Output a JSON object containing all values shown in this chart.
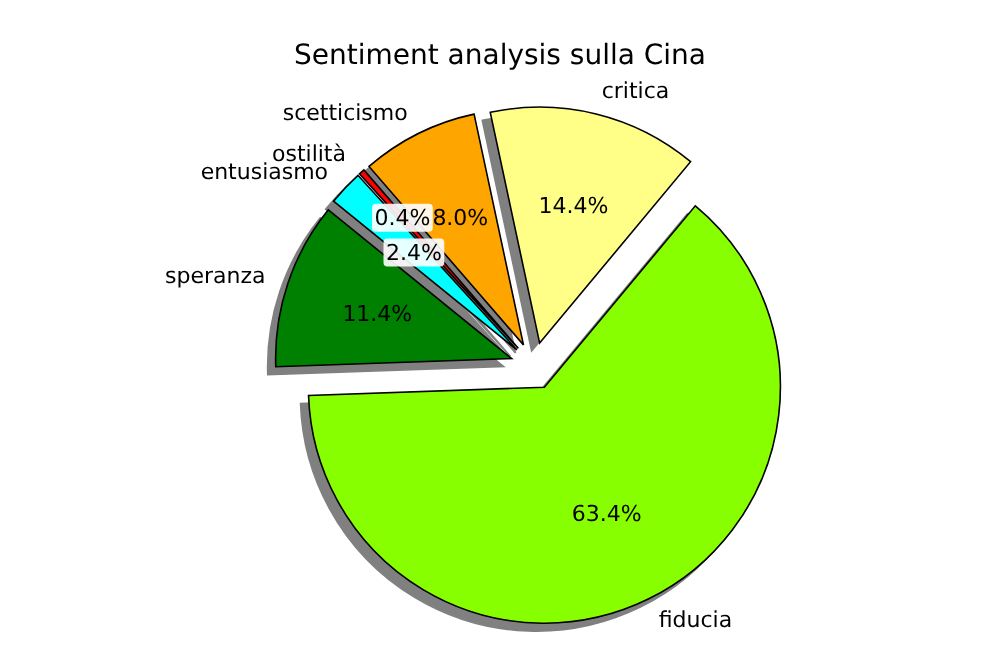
{
  "chart_data": {
    "type": "pie",
    "title": "Sentiment analysis sulla Cina",
    "categories": [
      "fiducia",
      "critica",
      "scetticismo",
      "ostilità",
      "entusiasmo",
      "speranza"
    ],
    "values": [
      63.4,
      14.4,
      8.0,
      0.4,
      2.4,
      11.4
    ],
    "colors": [
      "#88ff00",
      "#ffff88",
      "#ffa500",
      "#ff0000",
      "#00ffff",
      "#008000"
    ],
    "value_labels": [
      "63.4%",
      "14.4%",
      "8.0%",
      "0.4%",
      "2.4%",
      "11.4%"
    ],
    "legend": false
  }
}
